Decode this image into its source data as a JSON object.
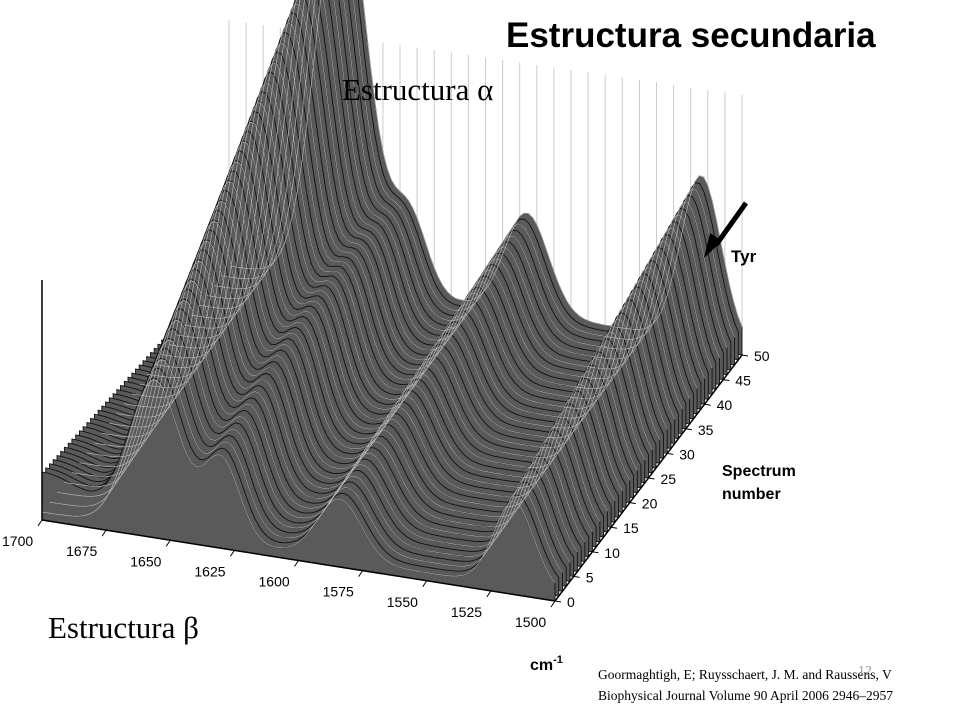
{
  "slide": {
    "title": "Estructura secundaria",
    "label_alpha": "Estructura α",
    "label_beta": "Estructura β",
    "citation_line1": "Goormaghtigh, E; Ruysschaert, J. M. and Raussens, V",
    "citation_line2": "Biophysical Journal Volume 90 April 2006 2946–2957",
    "slide_number": "12"
  },
  "chart_data": {
    "type": "surface",
    "title": "",
    "xlabel": "cm-1",
    "ylabel": "Spectrum number",
    "x_ticks": [
      "1700",
      "1675",
      "1650",
      "1625",
      "1600",
      "1575",
      "1550",
      "1525",
      "1500"
    ],
    "y_ticks": [
      "0",
      "5",
      "10",
      "15",
      "20",
      "25",
      "30",
      "35",
      "40",
      "45",
      "50"
    ],
    "xlim": [
      1700,
      1500
    ],
    "ylim": [
      0,
      50
    ],
    "annotation": "Tyr",
    "series": [
      {
        "spectrum": 0,
        "peaks_cm1": [
          1655,
          1630,
          1585,
          1515
        ],
        "rel_heights": [
          0.45,
          0.4,
          0.2,
          0.3
        ]
      },
      {
        "spectrum": 10,
        "peaks_cm1": [
          1655,
          1630,
          1585,
          1515
        ],
        "rel_heights": [
          0.6,
          0.45,
          0.25,
          0.35
        ]
      },
      {
        "spectrum": 20,
        "peaks_cm1": [
          1655,
          1630,
          1585,
          1515
        ],
        "rel_heights": [
          0.75,
          0.45,
          0.28,
          0.38
        ]
      },
      {
        "spectrum": 30,
        "peaks_cm1": [
          1655,
          1630,
          1585,
          1515
        ],
        "rel_heights": [
          0.88,
          0.4,
          0.3,
          0.42
        ]
      },
      {
        "spectrum": 40,
        "peaks_cm1": [
          1655,
          1630,
          1585,
          1515
        ],
        "rel_heights": [
          0.95,
          0.35,
          0.32,
          0.45
        ]
      },
      {
        "spectrum": 50,
        "peaks_cm1": [
          1655,
          1630,
          1585,
          1515
        ],
        "rel_heights": [
          1.0,
          0.3,
          0.33,
          0.47
        ]
      }
    ]
  }
}
